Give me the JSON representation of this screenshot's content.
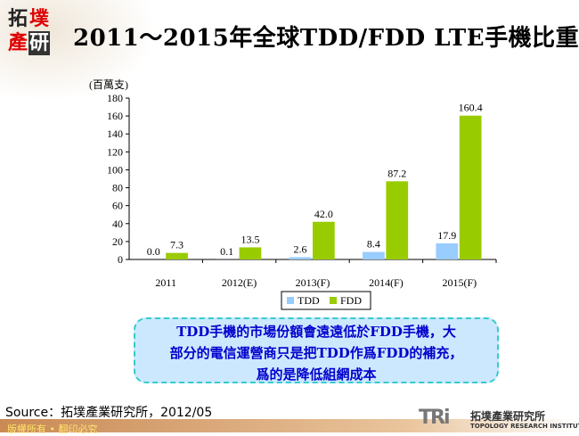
{
  "logo": {
    "chars": [
      "拓",
      "墣",
      "產",
      "研"
    ]
  },
  "title": "2011～2015年全球TDD/FDD LTE手機比重",
  "chart_data": {
    "type": "bar",
    "title": "",
    "ylabel": "(百萬支)",
    "categories": [
      "2011",
      "2012(E)",
      "2013(F)",
      "2014(F)",
      "2015(F)"
    ],
    "ylim": [
      0,
      180
    ],
    "yticks": [
      "0",
      "20",
      "40",
      "60",
      "80",
      "100",
      "120",
      "140",
      "160",
      "180"
    ],
    "grid": false,
    "legend": "bottom",
    "series": [
      {
        "name": "TDD",
        "values": [
          0.0,
          0.1,
          2.6,
          8.4,
          17.9
        ],
        "labels": [
          "0.0",
          "0.1",
          "2.6",
          "8.4",
          "17.9"
        ],
        "color": "#99ccff"
      },
      {
        "name": "FDD",
        "values": [
          7.3,
          13.5,
          42.0,
          87.2,
          160.4
        ],
        "labels": [
          "7.3",
          "13.5",
          "42.0",
          "87.2",
          "160.4"
        ],
        "color": "#99cc00"
      }
    ]
  },
  "callout": {
    "lines": [
      "TDD手機的市場份額會遠遠低於FDD手機，大",
      "部分的電信運營商只是把TDD作爲FDD的補充，",
      "爲的是降低組網成本"
    ]
  },
  "source": "Source：拓墣產業研究所，2012/05",
  "footer": "版權所有 • 翻印必究",
  "brand": {
    "mark": "TRi",
    "name": "拓墣產業研究所",
    "sub": "TOPOLOGY RESEARCH INSTITUTE"
  }
}
